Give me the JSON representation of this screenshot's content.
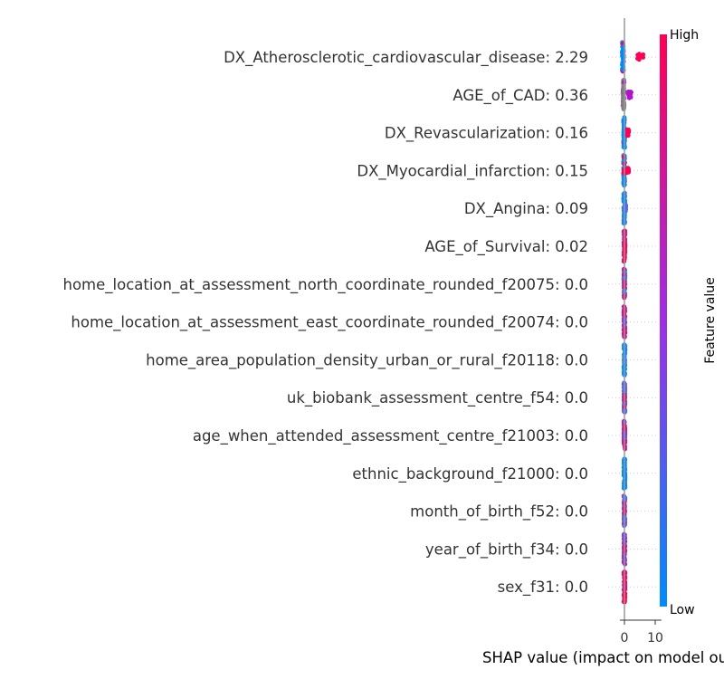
{
  "chart_data": {
    "type": "scatter",
    "subtype": "shap-beeswarm-summary",
    "features": [
      {
        "label": "DX_Atherosclerotic_cardiovascular_disease: 2.29",
        "low_shap": -0.5,
        "high_shap": 5.2,
        "high_spread": 2.2,
        "low_color": "#008bfb",
        "high_color": "#ff0052"
      },
      {
        "label": "AGE_of_CAD: 0.36",
        "low_shap": -0.3,
        "high_shap": 1.8,
        "high_spread": 1.2,
        "low_color": "#7f7f7f",
        "high_color": "#b014cf"
      },
      {
        "label": "DX_Revascularization: 0.16",
        "low_shap": -0.1,
        "high_shap": 1.1,
        "high_spread": 0.7,
        "low_color": "#008bfb",
        "high_color": "#ff0052"
      },
      {
        "label": "DX_Myocardial_infarction: 0.15",
        "low_shap": -0.1,
        "high_shap": 1.0,
        "high_spread": 0.8,
        "low_color": "#008bfb",
        "high_color": "#ff0052"
      },
      {
        "label": "DX_Angina: 0.09",
        "low_shap": -0.05,
        "high_shap": 0.4,
        "high_spread": 0.2,
        "low_color": "#008bfb",
        "high_color": "#4b6cf0"
      },
      {
        "label": "AGE_of_Survival: 0.02",
        "low_shap": 0.0,
        "high_shap": 0.1,
        "high_spread": 0.1,
        "low_color": "#d6127c",
        "high_color": "#ff0052"
      },
      {
        "label": "home_location_at_assessment_north_coordinate_rounded_f20075: 0.0",
        "low_shap": 0.0,
        "high_shap": 0.0,
        "high_spread": 0.05,
        "low_color": "#4b6cf0",
        "high_color": "#d6127c"
      },
      {
        "label": "home_location_at_assessment_east_coordinate_rounded_f20074: 0.0",
        "low_shap": 0.0,
        "high_shap": 0.0,
        "high_spread": 0.05,
        "low_color": "#d6127c",
        "high_color": "#7a40e0"
      },
      {
        "label": "home_area_population_density_urban_or_rural_f20118: 0.0",
        "low_shap": 0.0,
        "high_shap": 0.0,
        "high_spread": 0.05,
        "low_color": "#008bfb",
        "high_color": "#2f86f7"
      },
      {
        "label": "uk_biobank_assessment_centre_f54: 0.0",
        "low_shap": 0.0,
        "high_shap": 0.0,
        "high_spread": 0.05,
        "low_color": "#4b6cf0",
        "high_color": "#d6127c"
      },
      {
        "label": "age_when_attended_assessment_centre_f21003: 0.0",
        "low_shap": 0.0,
        "high_shap": 0.0,
        "high_spread": 0.05,
        "low_color": "#d6127c",
        "high_color": "#7a40e0"
      },
      {
        "label": "ethnic_background_f21000: 0.0",
        "low_shap": 0.0,
        "high_shap": 0.0,
        "high_spread": 0.05,
        "low_color": "#008bfb",
        "high_color": "#008bfb"
      },
      {
        "label": "month_of_birth_f52: 0.0",
        "low_shap": 0.0,
        "high_shap": 0.0,
        "high_spread": 0.05,
        "low_color": "#4b6cf0",
        "high_color": "#d6127c"
      },
      {
        "label": "year_of_birth_f34: 0.0",
        "low_shap": 0.0,
        "high_shap": 0.0,
        "high_spread": 0.05,
        "low_color": "#7a40e0",
        "high_color": "#d6127c"
      },
      {
        "label": "sex_f31: 0.0",
        "low_shap": 0.0,
        "high_shap": 0.0,
        "high_spread": 0.05,
        "low_color": "#ff0052",
        "high_color": "#d6127c"
      }
    ],
    "xlabel": "SHAP value (impact on model output)",
    "xticks": [
      0,
      10
    ],
    "xlim": [
      -1.5,
      12
    ],
    "colorbar": {
      "label": "Feature value",
      "high_label": "High",
      "low_label": "Low",
      "high_color": "#ff0052",
      "mid_color": "#9d2ee6",
      "low_color": "#008bfb"
    },
    "grid": false,
    "legend": "none"
  }
}
